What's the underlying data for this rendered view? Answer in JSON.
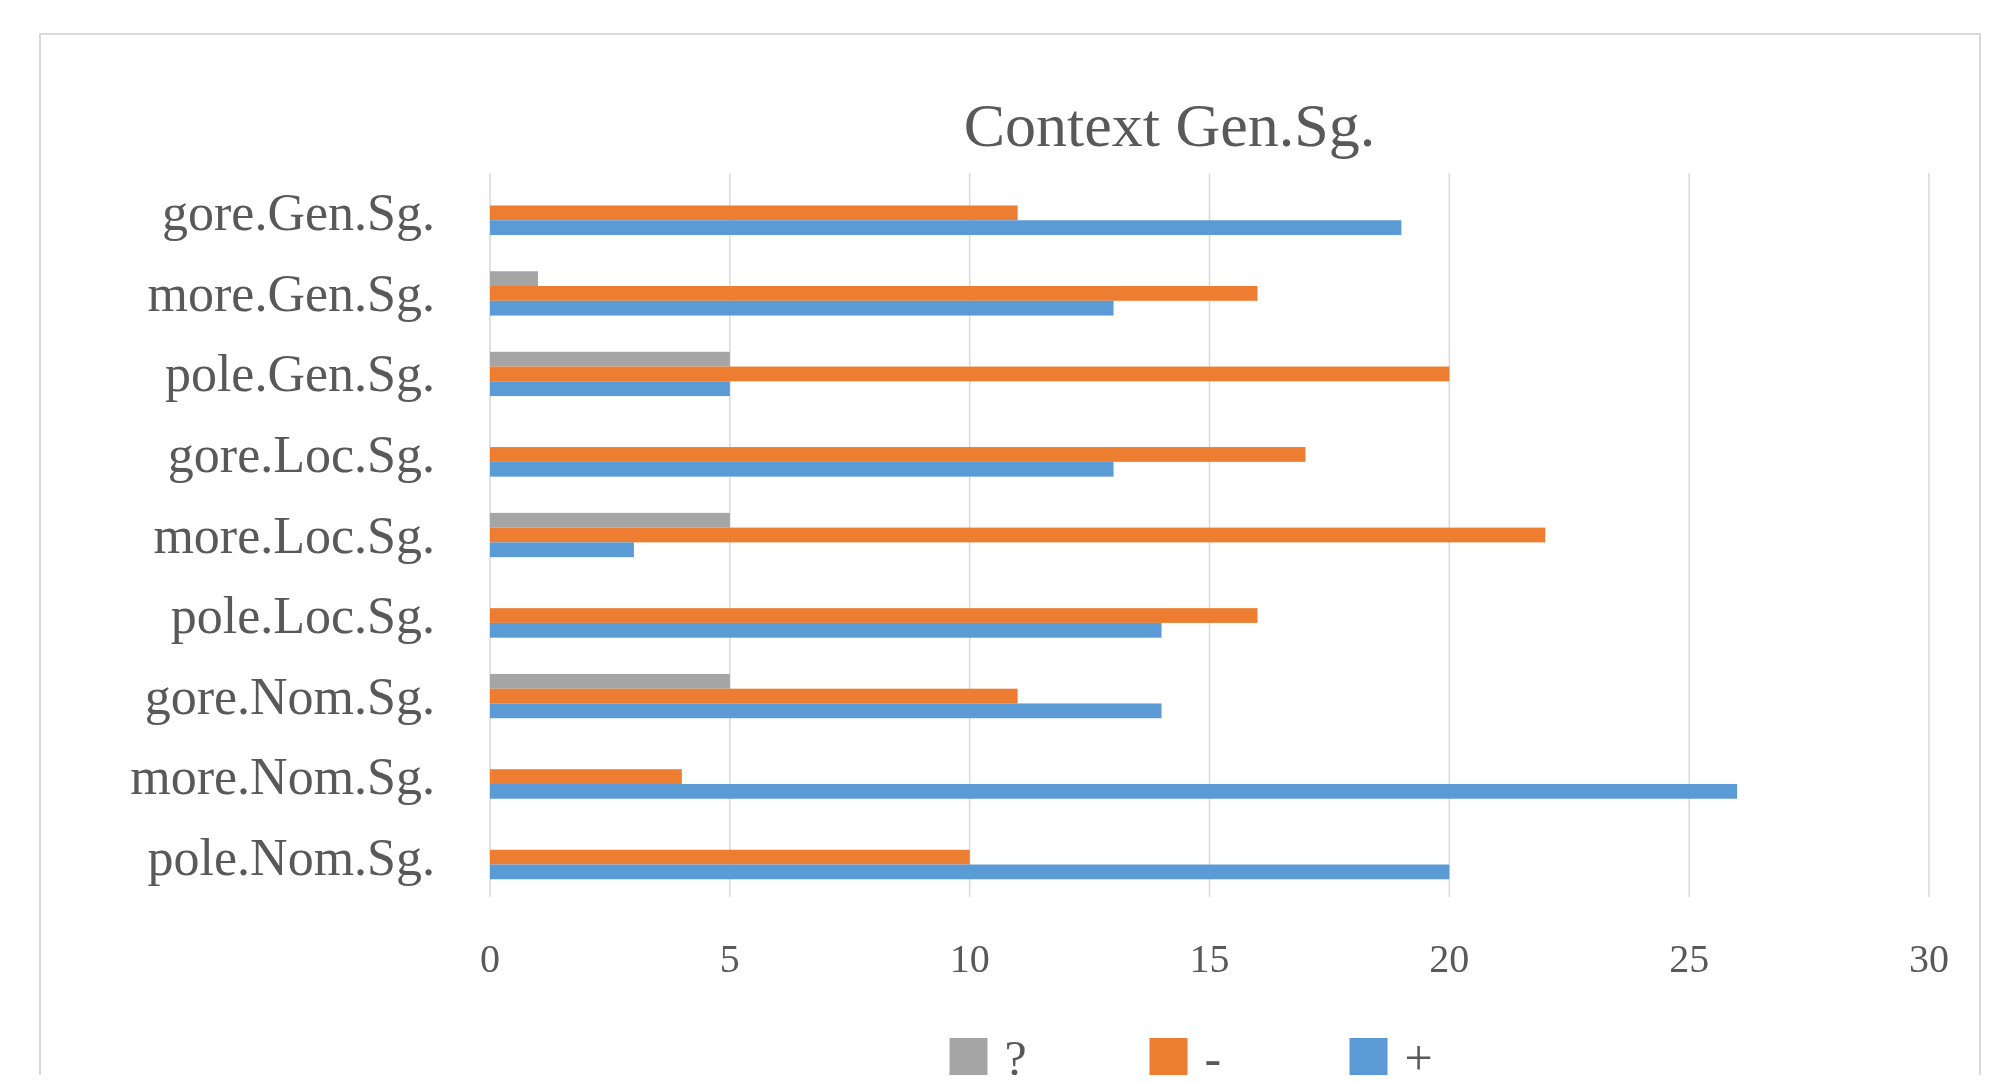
{
  "chart_data": {
    "type": "bar",
    "orientation": "horizontal",
    "title": "Context Gen.Sg.",
    "categories": [
      "gore.Gen.Sg.",
      "more.Gen.Sg.",
      "pole.Gen.Sg.",
      "gore.Loc.Sg.",
      "more.Loc.Sg.",
      "pole.Loc.Sg.",
      "gore.Nom.Sg.",
      "more.Nom.Sg.",
      "pole.Nom.Sg."
    ],
    "series": [
      {
        "name": "?",
        "color": "#a5a5a5",
        "values": [
          0,
          1,
          5,
          0,
          5,
          0,
          5,
          0,
          0
        ]
      },
      {
        "name": "-",
        "color": "#ed7d31",
        "values": [
          11,
          16,
          20,
          17,
          22,
          16,
          11,
          4,
          10
        ]
      },
      {
        "name": "+",
        "color": "#5b9bd5",
        "values": [
          19,
          13,
          5,
          13,
          3,
          14,
          14,
          26,
          20
        ]
      }
    ],
    "xlim": [
      0,
      30
    ],
    "xticks": [
      0,
      5,
      10,
      15,
      20,
      25,
      30
    ],
    "grid": "x",
    "legend": "bottom"
  }
}
